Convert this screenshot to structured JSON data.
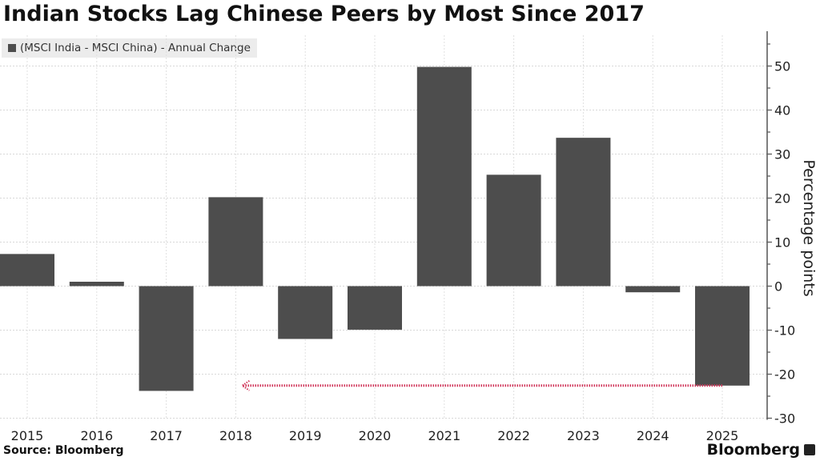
{
  "chart_data": {
    "type": "bar",
    "title": "Indian Stocks Lag Chinese Peers by Most Since 2017",
    "legend": [
      "(MSCI India - MSCI China) - Annual Change"
    ],
    "legend_placement": "top-left",
    "categories": [
      "2015",
      "2016",
      "2017",
      "2018",
      "2019",
      "2020",
      "2021",
      "2022",
      "2023",
      "2024",
      "2025"
    ],
    "series": [
      {
        "name": "(MSCI India - MSCI China) - Annual Change",
        "values": [
          7.3,
          1.0,
          -23.8,
          20.2,
          -12.0,
          -9.9,
          49.8,
          25.3,
          33.7,
          -1.4,
          -22.6
        ]
      }
    ],
    "xlabel": "",
    "ylabel": "Percentage points",
    "ylim": [
      -30,
      55
    ],
    "yticks": [
      -30,
      -20,
      -10,
      0,
      10,
      20,
      30,
      40,
      50
    ],
    "y_axis_side": "right",
    "grid": true,
    "annotation": {
      "type": "dotted-arrow",
      "from_category": "2025",
      "to_category": "2018",
      "value": -22.6,
      "color": "#d0365a"
    },
    "bar_color": "#4d4d4d"
  },
  "source": "Source: Bloomberg",
  "brand": "Bloomberg"
}
